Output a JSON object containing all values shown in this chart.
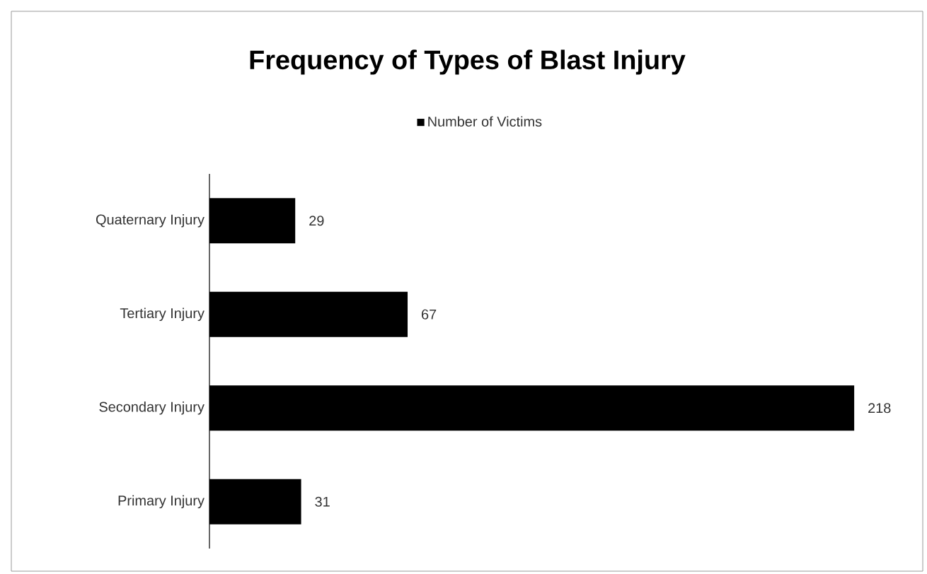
{
  "chart_data": {
    "type": "bar",
    "orientation": "horizontal",
    "title": "Frequency of Types of Blast Injury",
    "categories": [
      "Quaternary Injury",
      "Tertiary Injury",
      "Secondary Injury",
      "Primary Injury"
    ],
    "series": [
      {
        "name": "Number of Victims",
        "color": "#000000",
        "values": [
          29,
          67,
          218,
          31
        ]
      }
    ],
    "data_labels": true,
    "legend": "top"
  }
}
